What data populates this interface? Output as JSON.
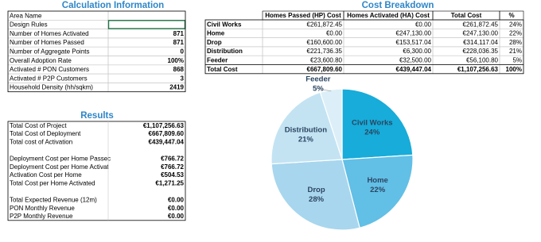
{
  "calc_info": {
    "title": "Calculation Information",
    "rows": [
      {
        "label": "Area Name"
      },
      {
        "label": "Design Rules"
      },
      {
        "label": "Number of Homes Activated",
        "value": "871"
      },
      {
        "label": "Number of Homes Passed",
        "value": "871"
      },
      {
        "label": "Number of Aggregate Points",
        "value": "0"
      },
      {
        "label": "Overall Adoption Rate",
        "value": "100%"
      },
      {
        "label": "Activated # PON Customers",
        "value": "868"
      },
      {
        "label": "Activated # P2P Customers",
        "value": "3"
      },
      {
        "label": "Household Density (hh/sqkm)",
        "value": "2419"
      }
    ]
  },
  "results": {
    "title": "Results",
    "groups": [
      [
        {
          "label": "Total Cost of Project",
          "value": "€1,107,256.63"
        },
        {
          "label": "Total Cost of Deployment",
          "value": "€667,809.60"
        },
        {
          "label": "Total cost of Activation",
          "value": "€439,447.04"
        }
      ],
      [
        {
          "label": "Deployment Cost per Home Passec",
          "value": "€766.72"
        },
        {
          "label": "Deployment Cost per Home Activat",
          "value": "€766.72"
        },
        {
          "label": "Activation Cost per Home",
          "value": "€504.53"
        },
        {
          "label": "Total Cost per Home Activated",
          "value": "€1,271.25"
        }
      ],
      [
        {
          "label": "Total Expected Revenue (12m)",
          "value": "€0.00"
        },
        {
          "label": "PON Monthly Revenue",
          "value": "€0.00"
        },
        {
          "label": "P2P Monthly Revenue",
          "value": "€0.00"
        }
      ]
    ]
  },
  "cost_breakdown": {
    "title": "Cost Breakdown",
    "headers": [
      "Homes Passed (HP) Cost",
      "Homes Activated (HA) Cost",
      "Total Cost",
      "%"
    ],
    "rows": [
      [
        "Civil Works",
        "€261,872.45",
        "€0.00",
        "€261,872.45",
        "24%"
      ],
      [
        "Home",
        "€0.00",
        "€247,130.00",
        "€247,130.00",
        "22%"
      ],
      [
        "Drop",
        "€160,600.00",
        "€153,517.04",
        "€314,117.04",
        "28%"
      ],
      [
        "Distribution",
        "€221,736.35",
        "€6,300.00",
        "€228,036.35",
        "21%"
      ],
      [
        "Feeder",
        "€23,600.80",
        "€32,500.00",
        "€56,100.80",
        "5%"
      ],
      [
        "Total Cost",
        "€667,809.60",
        "€439,447.04",
        "€1,107,256.63",
        "100%"
      ]
    ]
  },
  "chart_data": {
    "type": "pie",
    "categories": [
      "Civil Works",
      "Home",
      "Drop",
      "Distribution",
      "Feeder"
    ],
    "values": [
      24,
      22,
      28,
      21,
      5
    ],
    "value_labels": [
      "24%",
      "22%",
      "28%",
      "21%",
      "5%"
    ],
    "colors": [
      "#17acd9",
      "#62bfe6",
      "#a8d6ee",
      "#c3e3f3",
      "#dceff8"
    ]
  }
}
